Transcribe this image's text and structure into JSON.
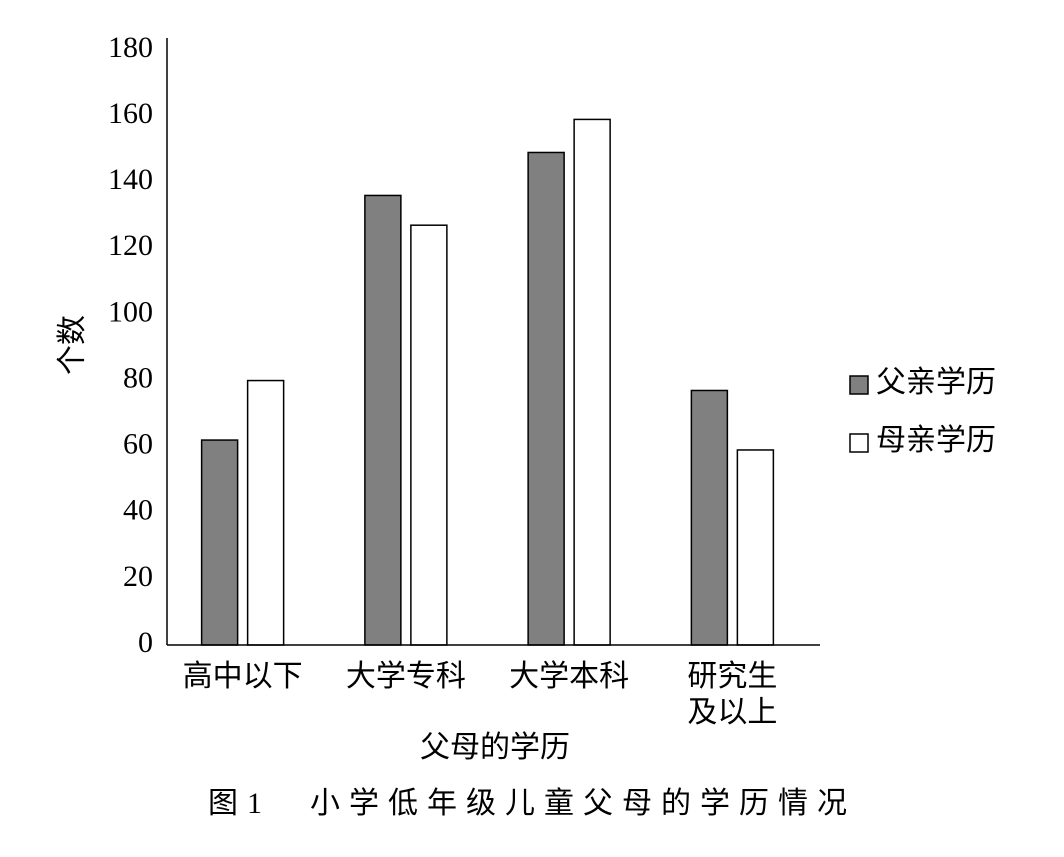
{
  "chart_data": {
    "type": "bar",
    "caption": "图1　小学低年级儿童父母的学历情况",
    "x_label": "父母的学历",
    "y_label": "个数",
    "categories": [
      "高中以下",
      "大学专科",
      "大学本科",
      "研究生\n及以上"
    ],
    "series": [
      {
        "name": "父亲学历",
        "color": "#808080",
        "values": [
          62,
          136,
          149,
          77
        ]
      },
      {
        "name": "母亲学历",
        "color": "#ffffff",
        "values": [
          80,
          127,
          159,
          59
        ]
      }
    ],
    "ylim": [
      0,
      180
    ],
    "yticks": [
      0,
      20,
      40,
      60,
      80,
      100,
      120,
      140,
      160,
      180
    ],
    "grid": false,
    "legend": "right"
  }
}
